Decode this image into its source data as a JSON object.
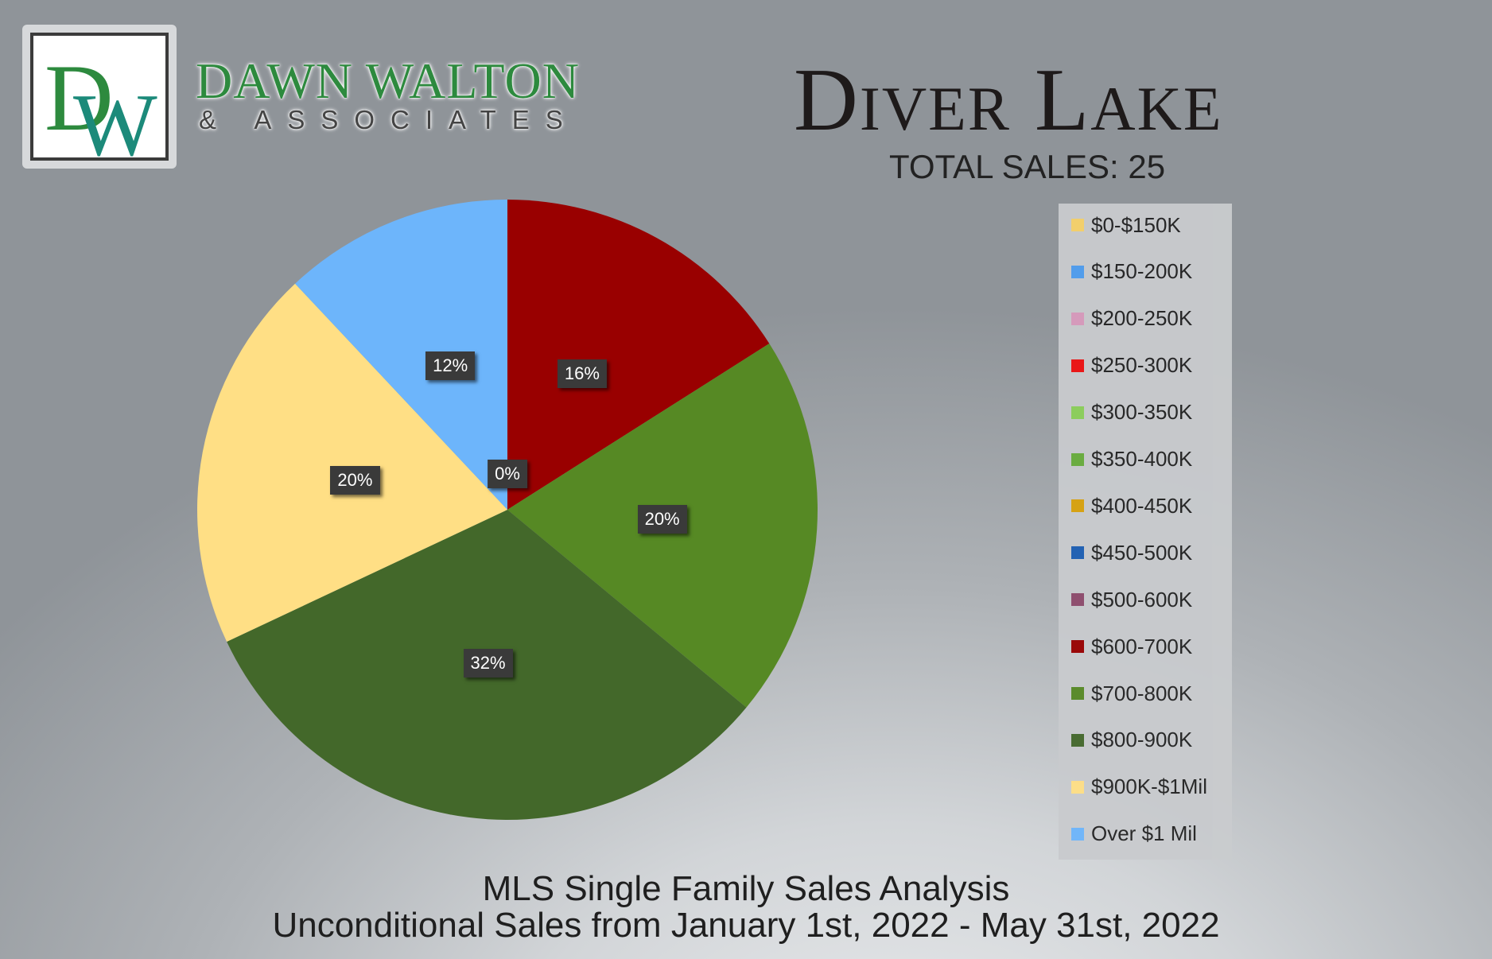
{
  "logo": {
    "monogram": "DW",
    "name": "DAWN WALTON",
    "subtitle": "& ASSOCIATES",
    "green": "#2d8a3e",
    "teal": "#1c8a7a"
  },
  "header": {
    "title": "Diver Lake",
    "total_sales": "TOTAL SALES: 25"
  },
  "footer": {
    "line1": "MLS Single Family Sales Analysis",
    "line2": "Unconditional Sales from January 1st, 2022 - May 31st, 2022"
  },
  "chart_data": {
    "type": "pie",
    "title": "Diver Lake",
    "subtitle": "TOTAL SALES: 25",
    "legend_position": "right",
    "slices": [
      {
        "name": "$0-$150K",
        "value": 0,
        "color": "#f8d36a",
        "label": ""
      },
      {
        "name": "$150-200K",
        "value": 0,
        "color": "#4f9ef0",
        "label": "0%"
      },
      {
        "name": "$200-250K",
        "value": 0,
        "color": "#d99bbd",
        "label": ""
      },
      {
        "name": "$250-300K",
        "value": 0,
        "color": "#ee1111",
        "label": ""
      },
      {
        "name": "$300-350K",
        "value": 0,
        "color": "#8cd05a",
        "label": ""
      },
      {
        "name": "$350-400K",
        "value": 0,
        "color": "#68ad3c",
        "label": ""
      },
      {
        "name": "$400-450K",
        "value": 0,
        "color": "#d9a20c",
        "label": ""
      },
      {
        "name": "$450-500K",
        "value": 0,
        "color": "#1c5fb4",
        "label": ""
      },
      {
        "name": "$500-600K",
        "value": 0,
        "color": "#8e4a6c",
        "label": ""
      },
      {
        "name": "$600-700K",
        "value": 16,
        "color": "#990000",
        "label": "16%"
      },
      {
        "name": "$700-800K",
        "value": 20,
        "color": "#568924",
        "label": "20%"
      },
      {
        "name": "$800-900K",
        "value": 32,
        "color": "#43682a",
        "label": "32%"
      },
      {
        "name": "$900K-$1Mil",
        "value": 20,
        "color": "#ffdf85",
        "label": "20%"
      },
      {
        "name": "Over $1 Mil",
        "value": 12,
        "color": "#6db5fb",
        "label": "12%"
      }
    ]
  }
}
